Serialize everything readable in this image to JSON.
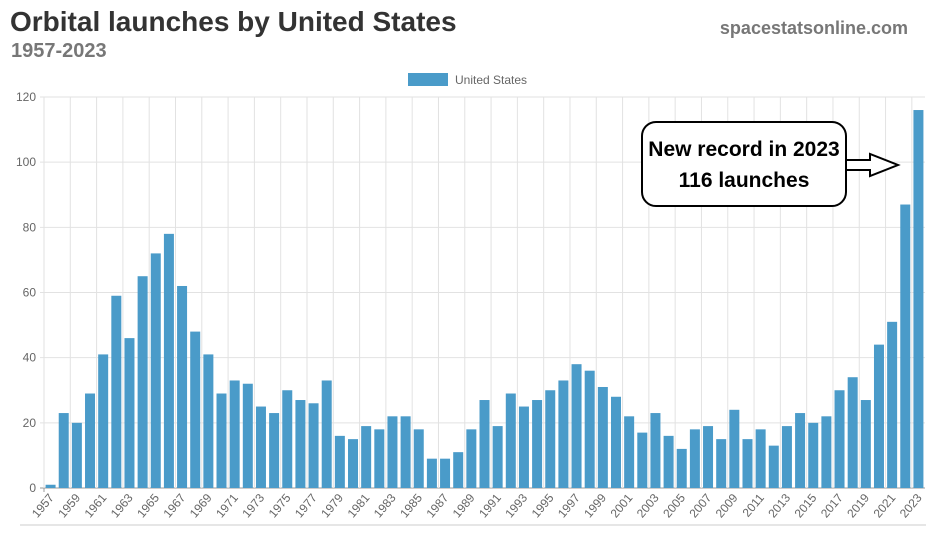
{
  "header": {
    "title": "Orbital launches by United States",
    "subtitle": "1957-2023",
    "site": "spacestatsonline.com"
  },
  "chart_data": {
    "type": "bar",
    "title": "Orbital launches by United States",
    "subtitle": "1957-2023",
    "xlabel": "",
    "ylabel": "",
    "ylim": [
      0,
      120
    ],
    "yticks": [
      0,
      20,
      40,
      60,
      80,
      100,
      120
    ],
    "grid": true,
    "legend": {
      "placement": "top-center",
      "entries": [
        "United States"
      ]
    },
    "color": "#4a9bc9",
    "categories": [
      "1957",
      "1958",
      "1959",
      "1960",
      "1961",
      "1962",
      "1963",
      "1964",
      "1965",
      "1966",
      "1967",
      "1968",
      "1969",
      "1970",
      "1971",
      "1972",
      "1973",
      "1974",
      "1975",
      "1976",
      "1977",
      "1978",
      "1979",
      "1980",
      "1981",
      "1982",
      "1983",
      "1984",
      "1985",
      "1986",
      "1987",
      "1988",
      "1989",
      "1990",
      "1991",
      "1992",
      "1993",
      "1994",
      "1995",
      "1996",
      "1997",
      "1998",
      "1999",
      "2000",
      "2001",
      "2002",
      "2003",
      "2004",
      "2005",
      "2006",
      "2007",
      "2008",
      "2009",
      "2010",
      "2011",
      "2012",
      "2013",
      "2014",
      "2015",
      "2016",
      "2017",
      "2018",
      "2019",
      "2020",
      "2021",
      "2022",
      "2023"
    ],
    "series": [
      {
        "name": "United States",
        "values": [
          1,
          23,
          20,
          29,
          41,
          59,
          46,
          65,
          72,
          78,
          62,
          48,
          41,
          29,
          33,
          32,
          25,
          23,
          30,
          27,
          26,
          33,
          16,
          15,
          19,
          18,
          22,
          22,
          18,
          9,
          9,
          11,
          18,
          27,
          19,
          29,
          25,
          27,
          30,
          33,
          38,
          36,
          31,
          28,
          22,
          17,
          23,
          16,
          12,
          18,
          19,
          15,
          24,
          15,
          18,
          13,
          19,
          23,
          20,
          22,
          30,
          34,
          27,
          44,
          51,
          87,
          116
        ]
      }
    ],
    "annotation": {
      "line1": "New record in 2023",
      "line2": "116 launches"
    }
  }
}
